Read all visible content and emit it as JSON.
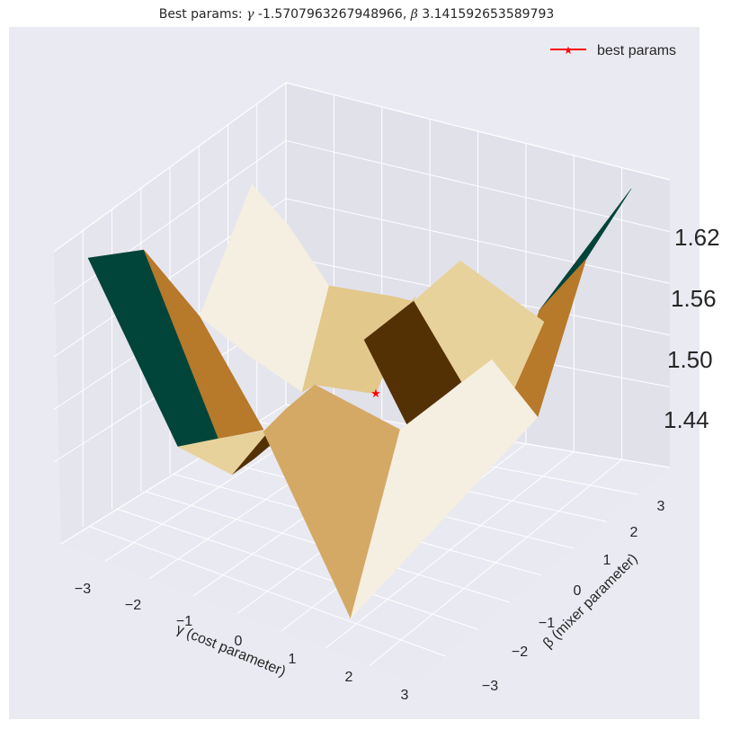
{
  "chart_data": {
    "type": "surface3d",
    "title_prefix": "Best params: ",
    "gamma_symbol": "γ",
    "gamma_value": "-1.5707963267948966",
    "beta_symbol": "β",
    "beta_value": "3.141592653589793",
    "xlabel": "γ (cost parameter)",
    "ylabel": "β (mixer parameter)",
    "x_ticks": [
      "−3",
      "−2",
      "−1",
      "0",
      "1",
      "2",
      "3"
    ],
    "y_ticks": [
      "−3",
      "−2",
      "−1",
      "0",
      "1",
      "2",
      "3"
    ],
    "z_ticks": [
      "1.44",
      "1.50",
      "1.56",
      "1.62"
    ],
    "legend": {
      "label": "best params",
      "placement": "top-right",
      "color": "#ff0000"
    },
    "best_point": {
      "gamma": -1.5707963267948966,
      "beta": 3.141592653589793
    },
    "colormap": [
      "#01443a",
      "#b7792a",
      "#e8d29b",
      "#f5efe1",
      "#543005",
      "#d4a965",
      "#e2c88b"
    ]
  }
}
